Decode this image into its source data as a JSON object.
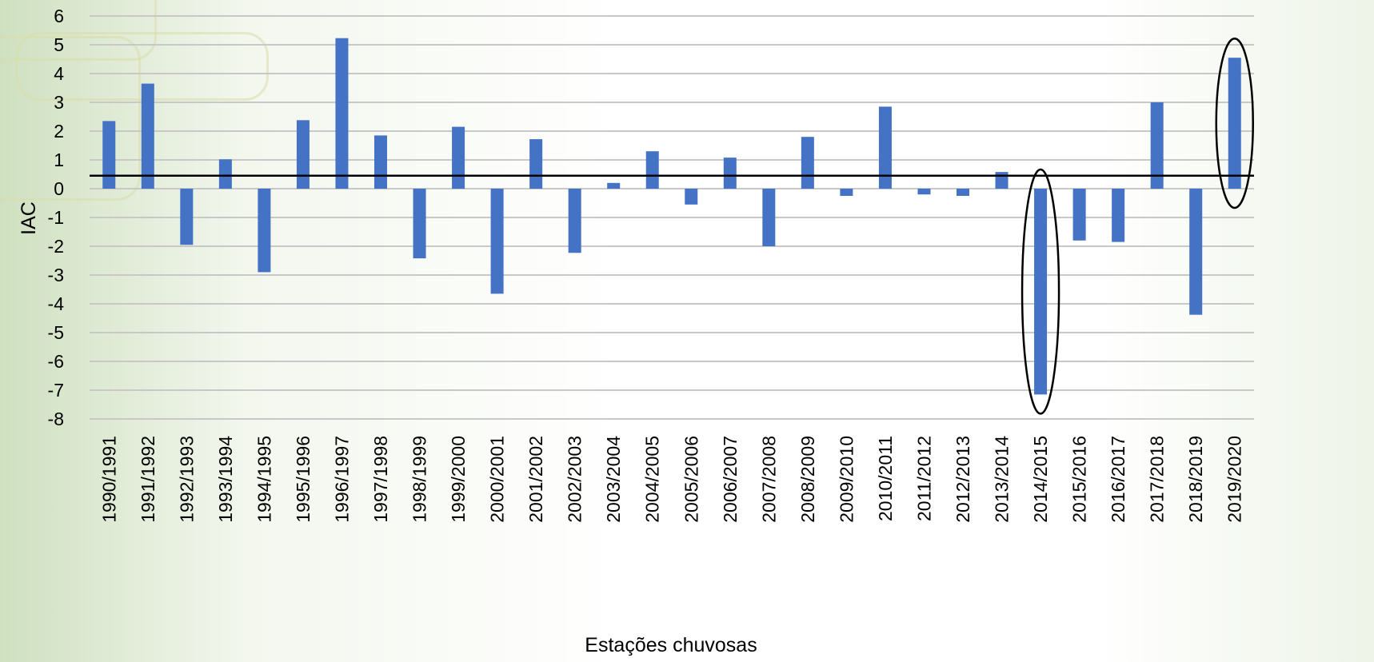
{
  "chart_data": {
    "type": "bar",
    "title": "",
    "xlabel": "Estações chuvosas",
    "ylabel": "IAC",
    "ylim": [
      -8,
      6
    ],
    "yticks": [
      6,
      5,
      4,
      3,
      2,
      1,
      0,
      -1,
      -2,
      -3,
      -4,
      -5,
      -6,
      -7,
      -8
    ],
    "grid": "horizontal",
    "reference_line": 0.45,
    "bar_color": "#4472c4",
    "categories": [
      "1990/1991",
      "1991/1992",
      "1992/1993",
      "1993/1994",
      "1994/1995",
      "1995/1996",
      "1996/1997",
      "1997/1998",
      "1998/1999",
      "1999/2000",
      "2000/2001",
      "2001/2002",
      "2002/2003",
      "2003/2004",
      "2004/2005",
      "2005/2006",
      "2006/2007",
      "2007/2008",
      "2008/2009",
      "2009/2010",
      "2010/2011",
      "2011/2012",
      "2012/2013",
      "2013/2014",
      "2014/2015",
      "2015/2016",
      "2016/2017",
      "2017/2018",
      "2018/2019",
      "2019/2020"
    ],
    "values": [
      2.35,
      3.65,
      -1.95,
      1.02,
      -2.9,
      2.38,
      5.23,
      1.85,
      -2.42,
      2.15,
      -3.65,
      1.72,
      -2.23,
      0.2,
      1.3,
      -0.55,
      1.08,
      -2.0,
      1.8,
      -0.25,
      2.85,
      -0.2,
      -0.25,
      0.58,
      -7.15,
      -1.8,
      -1.85,
      3.0,
      -4.38,
      4.55
    ],
    "highlighted": [
      "2014/2015",
      "2019/2020"
    ]
  }
}
